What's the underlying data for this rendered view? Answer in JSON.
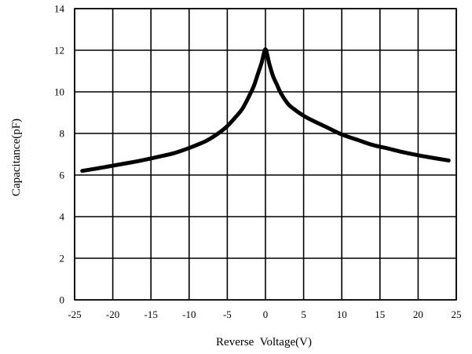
{
  "chart_data": {
    "type": "line",
    "title": "",
    "xlabel": "Reverse  Voltage(V)",
    "ylabel": "Capacitance(pF)",
    "xlim": [
      -25,
      25
    ],
    "ylim": [
      0,
      14
    ],
    "xticks": [
      -25,
      -20,
      -15,
      -10,
      -5,
      0,
      5,
      10,
      15,
      20,
      25
    ],
    "yticks": [
      0,
      2,
      4,
      6,
      8,
      10,
      12,
      14
    ],
    "grid": true,
    "legend": "none",
    "line_color": "#000000",
    "series": [
      {
        "x": [
          -24,
          -22,
          -20,
          -18,
          -16,
          -14,
          -12,
          -10,
          -8,
          -7,
          -6,
          -5,
          -4,
          -3,
          -2,
          -1.5,
          -1,
          -0.5,
          0,
          0.5,
          1,
          1.5,
          2,
          3,
          4,
          5,
          6,
          8,
          10,
          12,
          14,
          16,
          18,
          20,
          22,
          24
        ],
        "y": [
          6.2,
          6.32,
          6.45,
          6.58,
          6.72,
          6.88,
          7.05,
          7.3,
          7.6,
          7.8,
          8.05,
          8.35,
          8.75,
          9.2,
          9.9,
          10.3,
          10.85,
          11.4,
          12.05,
          11.35,
          10.75,
          10.35,
          9.95,
          9.4,
          9.1,
          8.85,
          8.65,
          8.3,
          7.95,
          7.7,
          7.45,
          7.28,
          7.1,
          6.95,
          6.82,
          6.7
        ]
      }
    ]
  }
}
